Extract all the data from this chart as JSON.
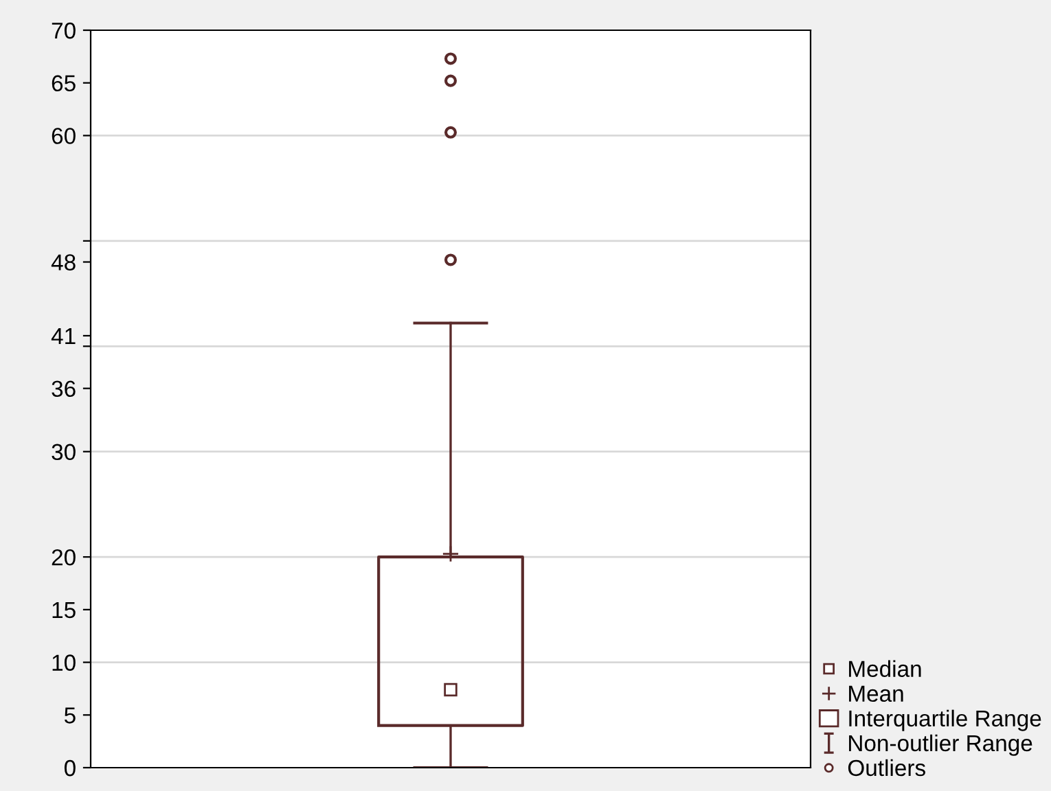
{
  "chart_data": {
    "type": "box",
    "categories": [
      null
    ],
    "boxes": [
      {
        "low": 0,
        "q1": 4,
        "median": 7.4,
        "q3": 20,
        "high": 42.2,
        "mean": 20.3,
        "outliers": [
          48.2,
          60.3,
          65.2,
          67.3
        ]
      }
    ],
    "color": "#5a2a2a",
    "ylim": [
      0,
      70
    ],
    "yticks": [
      0,
      5,
      10,
      15,
      20,
      30,
      36,
      {
        "value": 40,
        "label": null
      },
      41,
      48,
      {
        "value": 50,
        "label": null
      },
      60,
      65,
      70
    ],
    "grid": "y",
    "annotations": [
      "Median",
      "Mean",
      "Interquartile Range",
      "Non-outlier Range",
      "Outliers"
    ]
  }
}
